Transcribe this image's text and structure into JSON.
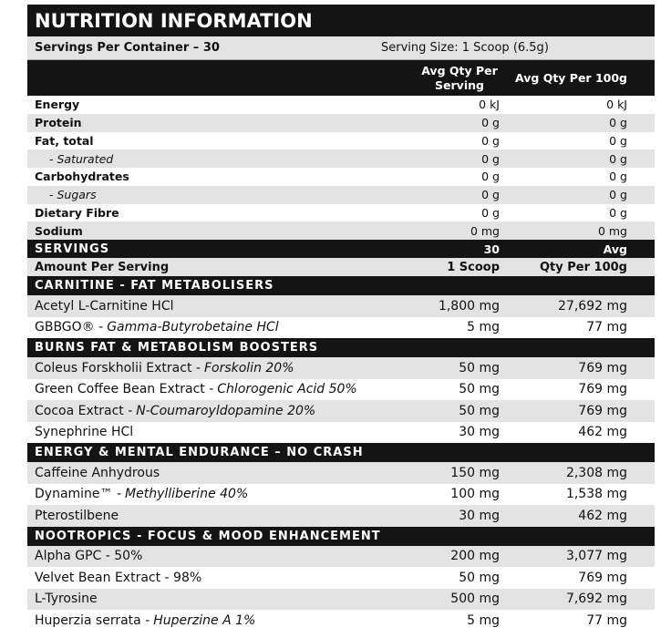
{
  "title": "NUTRITION INFORMATION",
  "serving_info": {
    "servings": "Servings Per Container – 30",
    "size": "Serving Size: 1 Scoop (6.5g)"
  },
  "nutrient_header": [
    "Avg Qty Per Serving",
    "Avg Qty Per 100g"
  ],
  "nutrients": [
    [
      "Energy",
      "0 kJ",
      "0 kJ"
    ],
    [
      "Protein",
      "0 g",
      "0 g"
    ],
    [
      "Fat, total",
      "0 g",
      "0 g"
    ],
    [
      "- Saturated",
      "0 g",
      "0 g"
    ],
    [
      "Carbohydrates",
      "0 g",
      "0 g"
    ],
    [
      "- Sugars",
      "0 g",
      "0 g"
    ],
    [
      "Dietary Fibre",
      "0 g",
      "0 g"
    ],
    [
      "Sodium",
      "0 mg",
      "0 mg"
    ]
  ],
  "servings_header": [
    "SERVINGS",
    "30",
    "Avg"
  ],
  "amount_header": [
    "Amount Per Serving",
    "1 Scoop",
    "Qty Per 100g"
  ],
  "sections": [
    {
      "title": "CARNITINE - FAT METABOLISERS",
      "rows": [
        {
          "name": "Acetyl L-Carnitine HCl",
          "per_serving": "1,800 mg",
          "per_100g": "27,692 mg"
        },
        {
          "name": "GBBGO® -",
          "detail": "Gamma-Butyrobetaine HCl",
          "per_serving": "5 mg",
          "per_100g": "77 mg"
        }
      ]
    },
    {
      "title": "BURNS FAT & METABOLISM BOOSTERS",
      "rows": [
        {
          "name": "Coleus Forskholii Extract -",
          "detail": "Forskolin 20%",
          "per_serving": "50 mg",
          "per_100g": "769 mg"
        },
        {
          "name": "Green Coffee Bean Extract -",
          "detail": "Chlorogenic Acid 50%",
          "per_serving": "50 mg",
          "per_100g": "769 mg"
        },
        {
          "name": "Cocoa Extract -",
          "detail": "N-Coumaroyldopamine 20%",
          "per_serving": "50 mg",
          "per_100g": "769 mg"
        },
        {
          "name": "Synephrine HCl",
          "per_serving": "30 mg",
          "per_100g": "462 mg"
        }
      ]
    },
    {
      "title": "ENERGY & MENTAL ENDURANCE – NO CRASH",
      "rows": [
        {
          "name": "Caffeine Anhydrous",
          "per_serving": "150 mg",
          "per_100g": "2,308 mg"
        },
        {
          "name": "Dynamine™ -",
          "detail": "Methylliberine 40%",
          "per_serving": "100 mg",
          "per_100g": "1,538 mg"
        },
        {
          "name": "Pterostilbene",
          "per_serving": "30 mg",
          "per_100g": "462 mg"
        }
      ]
    },
    {
      "title": "NOOTROPICS - FOCUS & MOOD ENHANCEMENT",
      "rows": [
        {
          "name": "Alpha GPC - 50%",
          "per_serving": "200 mg",
          "per_100g": "3,077 mg"
        },
        {
          "name": "Velvet Bean Extract - 98%",
          "per_serving": "50 mg",
          "per_100g": "769 mg"
        },
        {
          "name": "L-Tyrosine",
          "per_serving": "500 mg",
          "per_100g": "7,692 mg"
        },
        {
          "name": "Huperzia serrata -",
          "detail": "Huperzine A 1%",
          "per_serving": "5 mg",
          "per_100g": "77 mg"
        }
      ]
    }
  ]
}
